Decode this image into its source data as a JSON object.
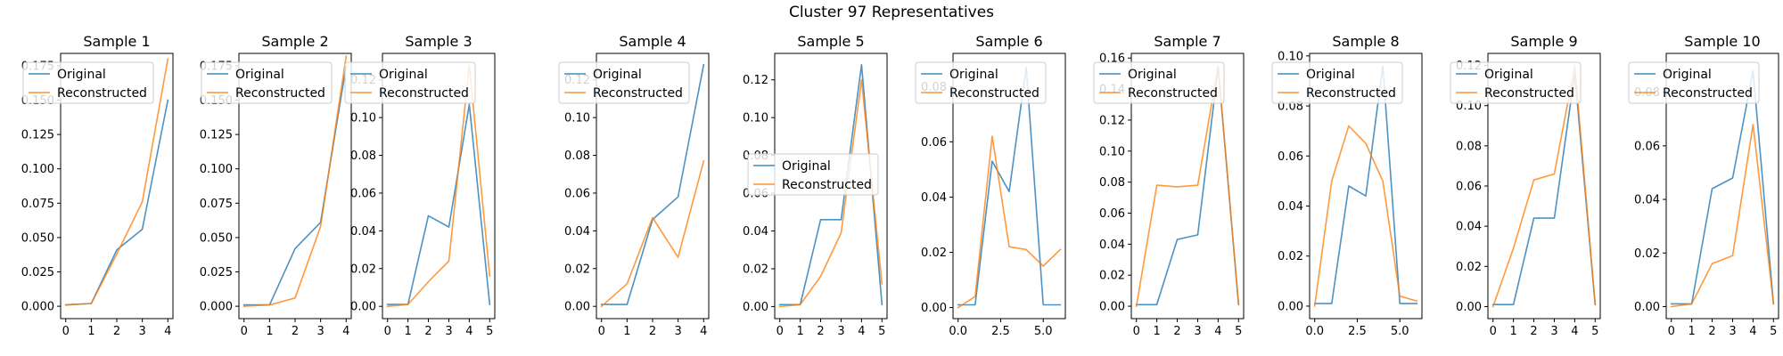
{
  "figure": {
    "title": "Cluster 97 Representatives",
    "colors": {
      "original": "#1f77b4",
      "reconstructed": "#ff7f0e"
    }
  },
  "chart_data": [
    {
      "type": "line",
      "title": "Sample 1",
      "xlim": [
        -0.2,
        4.2
      ],
      "ylim": [
        -0.009,
        0.184
      ],
      "xticks": [
        0,
        1,
        2,
        3,
        4
      ],
      "xtick_labels": [
        "0",
        "1",
        "2",
        "3",
        "4"
      ],
      "yticks": [
        0,
        0.025,
        0.05,
        0.075,
        0.1,
        0.125,
        0.15,
        0.175
      ],
      "ytick_labels": [
        "0.000",
        "0.025",
        "0.050",
        "0.075",
        "0.100",
        "0.125",
        "0.150",
        "0.175"
      ],
      "legend": "top-left",
      "series": [
        {
          "name": "Original",
          "x": [
            0,
            1,
            2,
            3,
            4
          ],
          "values": [
            0.001,
            0.002,
            0.041,
            0.056,
            0.15
          ]
        },
        {
          "name": "Reconstructed",
          "x": [
            0,
            1,
            2,
            3,
            4
          ],
          "values": [
            0.001,
            0.002,
            0.038,
            0.076,
            0.18
          ]
        }
      ]
    },
    {
      "type": "line",
      "title": "Sample 2",
      "xlim": [
        -0.2,
        4.2
      ],
      "ylim": [
        -0.009,
        0.184
      ],
      "xticks": [
        0,
        1,
        2,
        3,
        4
      ],
      "xtick_labels": [
        "0",
        "1",
        "2",
        "3",
        "4"
      ],
      "yticks": [
        0,
        0.025,
        0.05,
        0.075,
        0.1,
        0.125,
        0.15,
        0.175
      ],
      "ytick_labels": [
        "0.000",
        "0.025",
        "0.050",
        "0.075",
        "0.100",
        "0.125",
        "0.150",
        "0.175"
      ],
      "legend": "top-left",
      "series": [
        {
          "name": "Original",
          "x": [
            0,
            1,
            2,
            3,
            4
          ],
          "values": [
            0.001,
            0.001,
            0.042,
            0.061,
            0.175
          ]
        },
        {
          "name": "Reconstructed",
          "x": [
            0,
            1,
            2,
            3,
            4
          ],
          "values": [
            0.0,
            0.001,
            0.006,
            0.058,
            0.182
          ]
        }
      ]
    },
    {
      "type": "line",
      "title": "Sample 3",
      "xlim": [
        -0.25,
        5.25
      ],
      "ylim": [
        -0.0065,
        0.134
      ],
      "xticks": [
        0,
        1,
        2,
        3,
        4,
        5
      ],
      "xtick_labels": [
        "0",
        "1",
        "2",
        "3",
        "4",
        "5"
      ],
      "yticks": [
        0,
        0.02,
        0.04,
        0.06,
        0.08,
        0.1,
        0.12
      ],
      "ytick_labels": [
        "0.00",
        "0.02",
        "0.04",
        "0.06",
        "0.08",
        "0.10",
        "0.12"
      ],
      "legend": "top-left",
      "series": [
        {
          "name": "Original",
          "x": [
            0,
            1,
            2,
            3,
            4,
            5
          ],
          "values": [
            0.001,
            0.001,
            0.048,
            0.042,
            0.107,
            0.001
          ]
        },
        {
          "name": "Reconstructed",
          "x": [
            0,
            1,
            2,
            3,
            4,
            5
          ],
          "values": [
            0.0,
            0.001,
            0.013,
            0.024,
            0.128,
            0.016
          ]
        }
      ]
    },
    {
      "type": "line",
      "title": "Sample 4",
      "xlim": [
        -0.2,
        4.2
      ],
      "ylim": [
        -0.0065,
        0.134
      ],
      "xticks": [
        0,
        1,
        2,
        3,
        4
      ],
      "xtick_labels": [
        "0",
        "1",
        "2",
        "3",
        "4"
      ],
      "yticks": [
        0,
        0.02,
        0.04,
        0.06,
        0.08,
        0.1,
        0.12
      ],
      "ytick_labels": [
        "0.00",
        "0.02",
        "0.04",
        "0.06",
        "0.08",
        "0.10",
        "0.12"
      ],
      "legend": "top-left",
      "series": [
        {
          "name": "Original",
          "x": [
            0,
            1,
            2,
            3,
            4
          ],
          "values": [
            0.001,
            0.001,
            0.046,
            0.058,
            0.128
          ]
        },
        {
          "name": "Reconstructed",
          "x": [
            0,
            1,
            2,
            3,
            4
          ],
          "values": [
            0.0,
            0.012,
            0.047,
            0.026,
            0.077
          ]
        }
      ]
    },
    {
      "type": "line",
      "title": "Sample 5",
      "xlim": [
        -0.25,
        5.25
      ],
      "ylim": [
        -0.0064,
        0.134
      ],
      "xticks": [
        0,
        1,
        2,
        3,
        4,
        5
      ],
      "xtick_labels": [
        "0",
        "1",
        "2",
        "3",
        "4",
        "5"
      ],
      "yticks": [
        0,
        0.02,
        0.04,
        0.06,
        0.08,
        0.1,
        0.12
      ],
      "ytick_labels": [
        "0.00",
        "0.02",
        "0.04",
        "0.06",
        "0.08",
        "0.10",
        "0.12"
      ],
      "legend": "center-left",
      "series": [
        {
          "name": "Original",
          "x": [
            0,
            1,
            2,
            3,
            4,
            5
          ],
          "values": [
            0.001,
            0.001,
            0.046,
            0.046,
            0.128,
            0.001
          ]
        },
        {
          "name": "Reconstructed",
          "x": [
            0,
            1,
            2,
            3,
            4,
            5
          ],
          "values": [
            0.0,
            0.001,
            0.016,
            0.039,
            0.12,
            0.012
          ]
        }
      ]
    },
    {
      "type": "line",
      "title": "Sample 6",
      "xlim": [
        -0.3,
        6.3
      ],
      "ylim": [
        -0.004,
        0.092
      ],
      "xticks": [
        0,
        2.5,
        5
      ],
      "xtick_labels": [
        "0.0",
        "2.5",
        "5.0"
      ],
      "yticks": [
        0,
        0.02,
        0.04,
        0.06,
        0.08
      ],
      "ytick_labels": [
        "0.00",
        "0.02",
        "0.04",
        "0.06",
        "0.08"
      ],
      "legend": "top-left",
      "series": [
        {
          "name": "Original",
          "x": [
            0,
            1,
            2,
            3,
            4,
            5,
            6
          ],
          "values": [
            0.001,
            0.001,
            0.053,
            0.042,
            0.087,
            0.001,
            0.001
          ]
        },
        {
          "name": "Reconstructed",
          "x": [
            0,
            1,
            2,
            3,
            4,
            5,
            6
          ],
          "values": [
            0.0,
            0.004,
            0.062,
            0.022,
            0.021,
            0.015,
            0.021
          ]
        }
      ]
    },
    {
      "type": "line",
      "title": "Sample 7",
      "xlim": [
        -0.25,
        5.25
      ],
      "ylim": [
        -0.008,
        0.163
      ],
      "xticks": [
        0,
        1,
        2,
        3,
        4,
        5
      ],
      "xtick_labels": [
        "0",
        "1",
        "2",
        "3",
        "4",
        "5"
      ],
      "yticks": [
        0,
        0.02,
        0.04,
        0.06,
        0.08,
        0.1,
        0.12,
        0.14,
        0.16
      ],
      "ytick_labels": [
        "0.00",
        "0.02",
        "0.04",
        "0.06",
        "0.08",
        "0.10",
        "0.12",
        "0.14",
        "0.16"
      ],
      "legend": "top-left",
      "series": [
        {
          "name": "Original",
          "x": [
            0,
            1,
            2,
            3,
            4,
            5
          ],
          "values": [
            0.001,
            0.001,
            0.043,
            0.046,
            0.154,
            0.001
          ]
        },
        {
          "name": "Reconstructed",
          "x": [
            0,
            1,
            2,
            3,
            4,
            5
          ],
          "values": [
            0.0,
            0.078,
            0.077,
            0.078,
            0.155,
            0.001
          ]
        }
      ]
    },
    {
      "type": "line",
      "title": "Sample 8",
      "xlim": [
        -0.3,
        6.3
      ],
      "ylim": [
        -0.005,
        0.101
      ],
      "xticks": [
        0,
        2.5,
        5
      ],
      "xtick_labels": [
        "0.0",
        "2.5",
        "5.0"
      ],
      "yticks": [
        0,
        0.02,
        0.04,
        0.06,
        0.08,
        0.1
      ],
      "ytick_labels": [
        "0.00",
        "0.02",
        "0.04",
        "0.06",
        "0.08",
        "0.10"
      ],
      "legend": "top-left",
      "series": [
        {
          "name": "Original",
          "x": [
            0,
            1,
            2,
            3,
            4,
            5,
            6
          ],
          "values": [
            0.001,
            0.001,
            0.048,
            0.044,
            0.096,
            0.001,
            0.001
          ]
        },
        {
          "name": "Reconstructed",
          "x": [
            0,
            1,
            2,
            3,
            4,
            5,
            6
          ],
          "values": [
            0.0,
            0.05,
            0.072,
            0.065,
            0.05,
            0.004,
            0.002
          ]
        }
      ]
    },
    {
      "type": "line",
      "title": "Sample 9",
      "xlim": [
        -0.25,
        5.25
      ],
      "ylim": [
        -0.006,
        0.126
      ],
      "xticks": [
        0,
        1,
        2,
        3,
        4,
        5
      ],
      "xtick_labels": [
        "0",
        "1",
        "2",
        "3",
        "4",
        "5"
      ],
      "yticks": [
        0,
        0.02,
        0.04,
        0.06,
        0.08,
        0.1,
        0.12
      ],
      "ytick_labels": [
        "0.00",
        "0.02",
        "0.04",
        "0.06",
        "0.08",
        "0.10",
        "0.12"
      ],
      "legend": "top-left",
      "series": [
        {
          "name": "Original",
          "x": [
            0,
            1,
            2,
            3,
            4,
            5
          ],
          "values": [
            0.001,
            0.001,
            0.044,
            0.044,
            0.116,
            0.001
          ]
        },
        {
          "name": "Reconstructed",
          "x": [
            0,
            1,
            2,
            3,
            4,
            5
          ],
          "values": [
            0.0,
            0.029,
            0.063,
            0.066,
            0.12,
            0.001
          ]
        }
      ]
    },
    {
      "type": "line",
      "title": "Sample 10",
      "xlim": [
        -0.25,
        5.25
      ],
      "ylim": [
        -0.0045,
        0.0945
      ],
      "xticks": [
        0,
        1,
        2,
        3,
        4,
        5
      ],
      "xtick_labels": [
        "0",
        "1",
        "2",
        "3",
        "4",
        "5"
      ],
      "yticks": [
        0,
        0.02,
        0.04,
        0.06,
        0.08
      ],
      "ytick_labels": [
        "0.00",
        "0.02",
        "0.04",
        "0.06",
        "0.08"
      ],
      "legend": "top-left",
      "series": [
        {
          "name": "Original",
          "x": [
            0,
            1,
            2,
            3,
            4,
            5
          ],
          "values": [
            0.001,
            0.001,
            0.044,
            0.048,
            0.088,
            0.001
          ]
        },
        {
          "name": "Reconstructed",
          "x": [
            0,
            1,
            2,
            3,
            4,
            5
          ],
          "values": [
            0.0,
            0.001,
            0.016,
            0.019,
            0.068,
            0.001
          ]
        }
      ]
    }
  ]
}
